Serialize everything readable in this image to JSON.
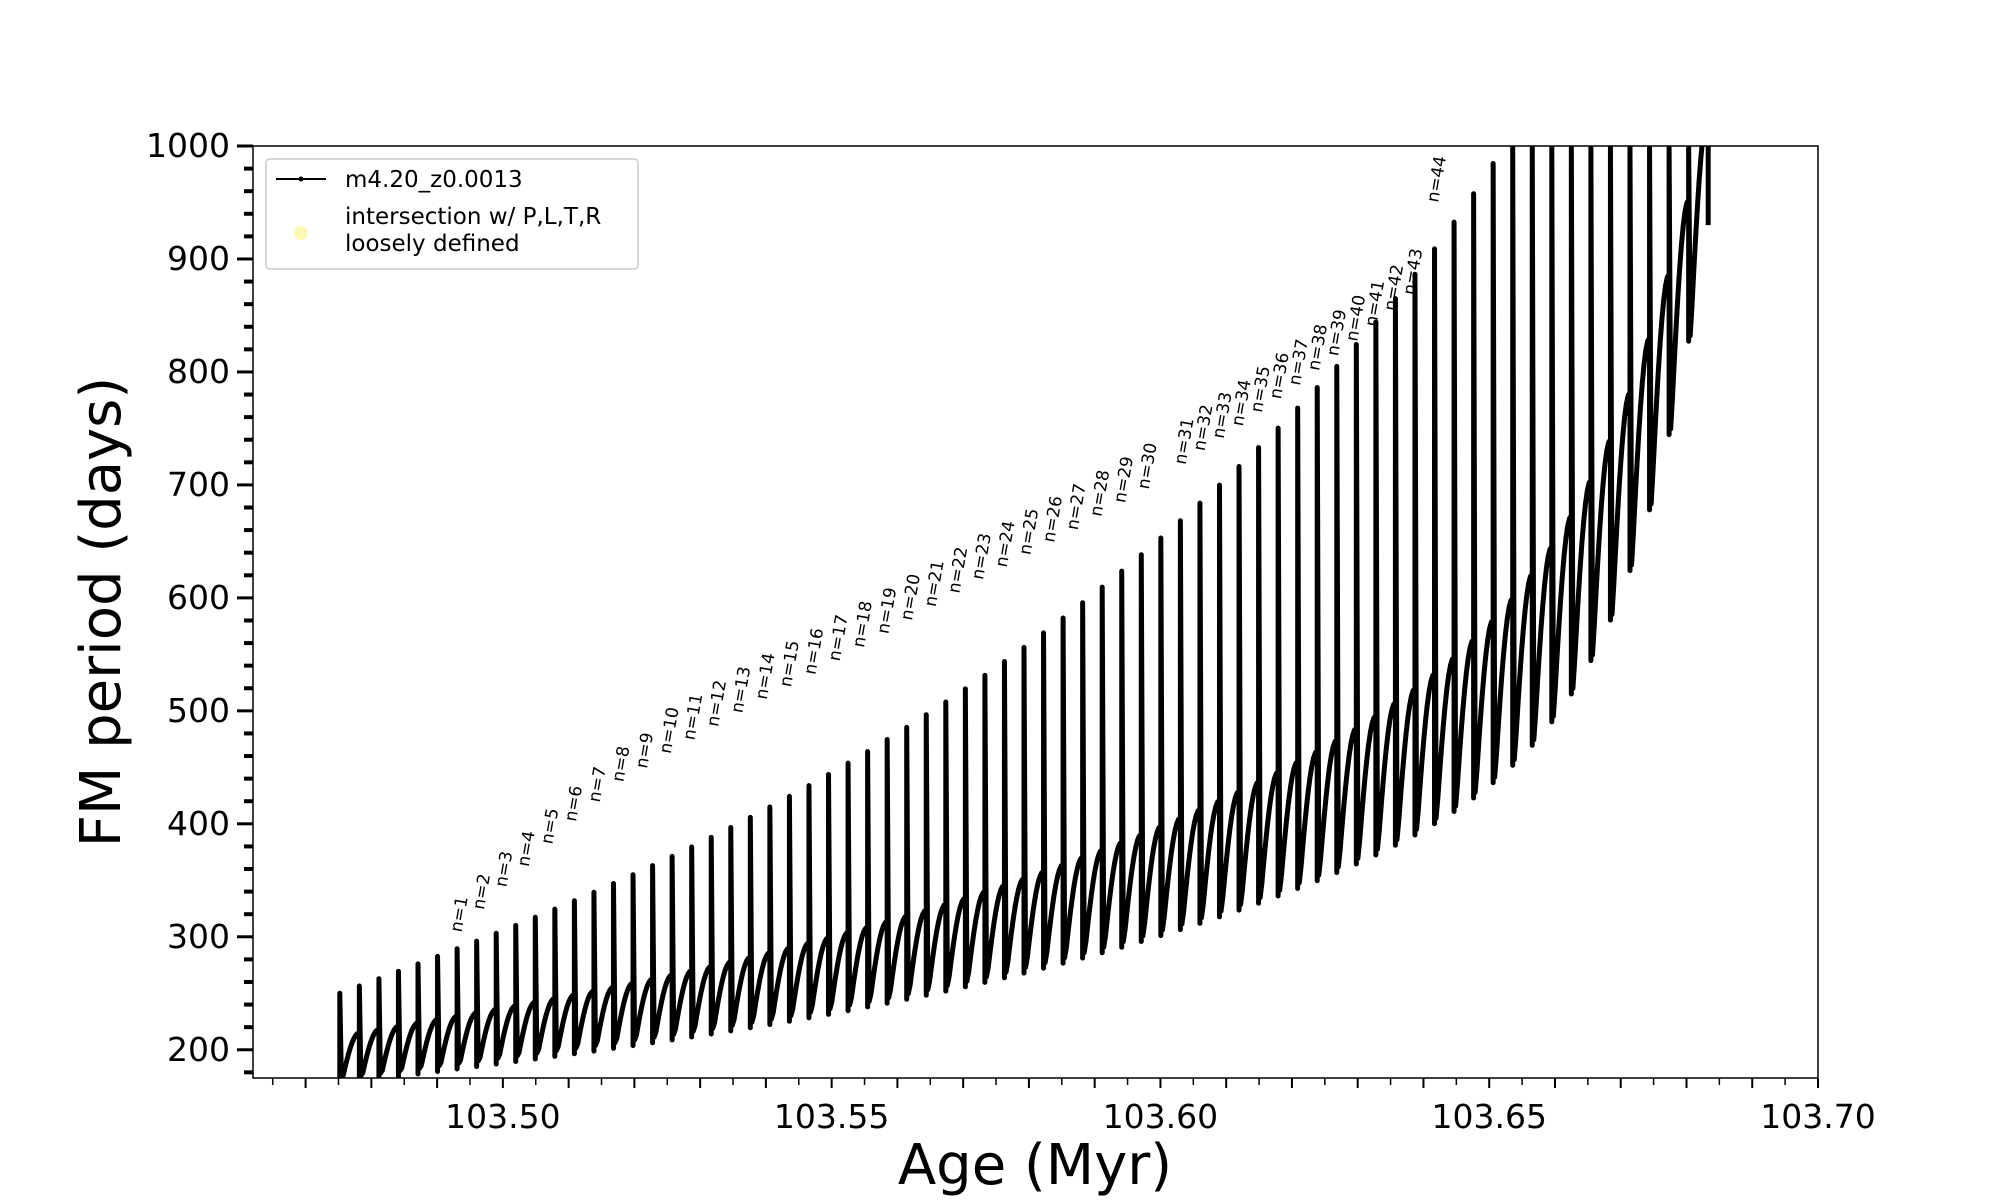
{
  "chart_data": {
    "type": "line",
    "title": "",
    "xlabel": "Age (Myr)",
    "ylabel": "FM period (days)",
    "xlim": [
      103.462,
      103.7
    ],
    "ylim": [
      175,
      1000
    ],
    "xticks": [
      "103.50",
      "103.55",
      "103.60",
      "103.65",
      "103.70"
    ],
    "xtick_values": [
      103.5,
      103.55,
      103.6,
      103.65,
      103.7
    ],
    "yticks": [
      "200",
      "300",
      "400",
      "500",
      "600",
      "700",
      "800",
      "900",
      "1000"
    ],
    "ytick_values": [
      200,
      300,
      400,
      500,
      600,
      700,
      800,
      900,
      1000
    ],
    "legend_position": "top-left",
    "legend": [
      {
        "label": "m4.20_z0.0013",
        "marker": "line-dot",
        "color": "#000000"
      },
      {
        "label": "intersection w/ P,L,T,R\nloosely defined",
        "marker": "circle",
        "color": "#fdf7b4"
      }
    ],
    "series": [
      {
        "name": "m4.20_z0.0013",
        "color": "#000000",
        "start_age": 103.4752,
        "end_age": 103.6833,
        "num_pulses": 70,
        "pulse_age_spacing": 0.0029,
        "lower_envelope_start": 170,
        "upper_envelope_start": 215
      }
    ],
    "annotations": [
      {
        "text": "n=1",
        "x": 103.4931,
        "y": 300
      },
      {
        "text": "n=2",
        "x": 103.4965,
        "y": 320
      },
      {
        "text": "n=3",
        "x": 103.4999,
        "y": 340
      },
      {
        "text": "n=4",
        "x": 103.5033,
        "y": 358
      },
      {
        "text": "n=5",
        "x": 103.5069,
        "y": 378
      },
      {
        "text": "n=6",
        "x": 103.5105,
        "y": 398
      },
      {
        "text": "n=7",
        "x": 103.5141,
        "y": 415
      },
      {
        "text": "n=8",
        "x": 103.5177,
        "y": 433
      },
      {
        "text": "n=9",
        "x": 103.5213,
        "y": 445
      },
      {
        "text": "n=10",
        "x": 103.5249,
        "y": 458
      },
      {
        "text": "n=11",
        "x": 103.5285,
        "y": 470
      },
      {
        "text": "n=12",
        "x": 103.5321,
        "y": 482
      },
      {
        "text": "n=13",
        "x": 103.5358,
        "y": 494
      },
      {
        "text": "n=14",
        "x": 103.5395,
        "y": 506
      },
      {
        "text": "n=15",
        "x": 103.5432,
        "y": 517
      },
      {
        "text": "n=16",
        "x": 103.5469,
        "y": 528
      },
      {
        "text": "n=17",
        "x": 103.5506,
        "y": 540
      },
      {
        "text": "n=18",
        "x": 103.5543,
        "y": 552
      },
      {
        "text": "n=19",
        "x": 103.558,
        "y": 564
      },
      {
        "text": "n=20",
        "x": 103.5616,
        "y": 576
      },
      {
        "text": "n=21",
        "x": 103.5652,
        "y": 588
      },
      {
        "text": "n=22",
        "x": 103.5688,
        "y": 600
      },
      {
        "text": "n=23",
        "x": 103.5724,
        "y": 612
      },
      {
        "text": "n=24",
        "x": 103.576,
        "y": 623
      },
      {
        "text": "n=25",
        "x": 103.5796,
        "y": 634
      },
      {
        "text": "n=26",
        "x": 103.5832,
        "y": 645
      },
      {
        "text": "n=27",
        "x": 103.5868,
        "y": 656
      },
      {
        "text": "n=28",
        "x": 103.5904,
        "y": 668
      },
      {
        "text": "n=29",
        "x": 103.594,
        "y": 680
      },
      {
        "text": "n=30",
        "x": 103.5976,
        "y": 692
      },
      {
        "text": "n=31",
        "x": 103.6032,
        "y": 714
      },
      {
        "text": "n=32",
        "x": 103.6061,
        "y": 726
      },
      {
        "text": "n=33",
        "x": 103.609,
        "y": 737
      },
      {
        "text": "n=34",
        "x": 103.6119,
        "y": 748
      },
      {
        "text": "n=35",
        "x": 103.6148,
        "y": 760
      },
      {
        "text": "n=36",
        "x": 103.6177,
        "y": 772
      },
      {
        "text": "n=37",
        "x": 103.6206,
        "y": 784
      },
      {
        "text": "n=38",
        "x": 103.6235,
        "y": 797
      },
      {
        "text": "n=39",
        "x": 103.6264,
        "y": 810
      },
      {
        "text": "n=40",
        "x": 103.6293,
        "y": 823
      },
      {
        "text": "n=41",
        "x": 103.6322,
        "y": 836
      },
      {
        "text": "n=42",
        "x": 103.6351,
        "y": 850
      },
      {
        "text": "n=43",
        "x": 103.638,
        "y": 864
      },
      {
        "text": "n=44",
        "x": 103.6416,
        "y": 946
      }
    ]
  }
}
